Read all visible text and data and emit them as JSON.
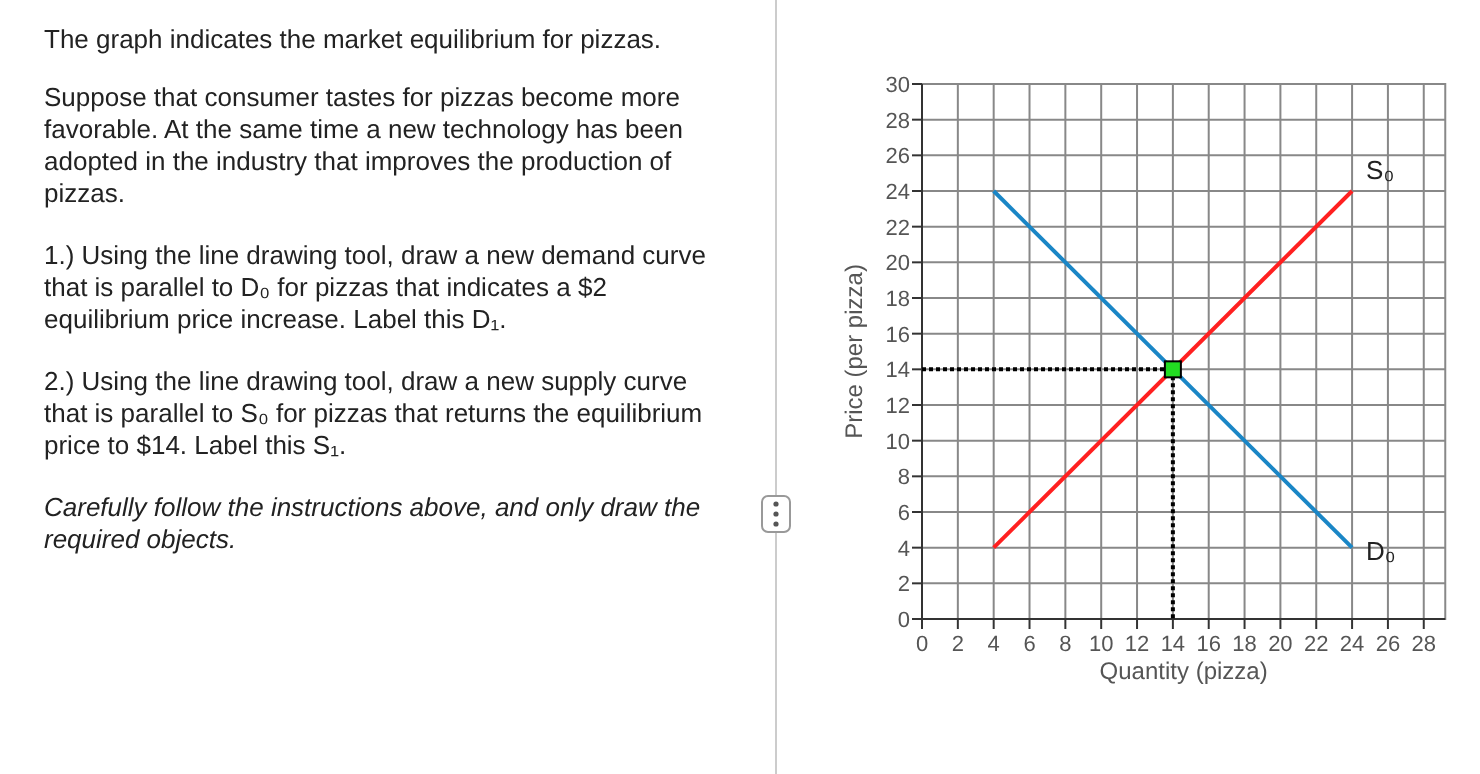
{
  "chart_data": {
    "type": "line",
    "title": "The graph indicates the market equilibrium for pizzas.",
    "annotations": [
      "Suppose that consumer tastes for pizzas become more favorable. At the same time a new technology has been adopted in the industry that improves the production of pizzas.",
      "1.) Using the line drawing tool, draw a new demand curve that is parallel to D₀ for pizzas that indicates a $2 equilibrium price increase. Label this D₁.",
      "2.) Using the line drawing tool, draw a new supply curve that is parallel to S₀ for pizzas that returns the equilibrium price to $14. Label this S₁.",
      "Carefully follow the instructions above, and only draw the required objects."
    ],
    "xlabel": "Quantity  (pizza)",
    "ylabel": "Price (per pizza)",
    "xlim": [
      0,
      29.2
    ],
    "ylim": [
      0,
      30
    ],
    "xticks": [
      0,
      2,
      4,
      6,
      8,
      10,
      12,
      14,
      16,
      18,
      20,
      22,
      24,
      26,
      28
    ],
    "yticks": [
      0,
      2,
      4,
      6,
      8,
      10,
      12,
      14,
      16,
      18,
      20,
      22,
      24,
      26,
      28,
      30
    ],
    "grid": true,
    "series": [
      {
        "name": "S₀",
        "color": "#ff2020",
        "x": [
          4,
          24
        ],
        "values": [
          4,
          24
        ]
      },
      {
        "name": "D₀",
        "color": "#1a86c6",
        "x": [
          4,
          24
        ],
        "values": [
          24,
          4
        ]
      },
      {
        "color": "#000000",
        "x": [
          0,
          14
        ],
        "values": [
          14,
          14
        ],
        "line_style": "dotted"
      },
      {
        "color": "#000000",
        "x": [
          14,
          14
        ],
        "values": [
          14,
          0
        ],
        "line_style": "dotted"
      },
      {
        "type": "scatter",
        "color": "#22dd22",
        "x": [
          14
        ],
        "values": [
          14
        ],
        "marker": "square"
      }
    ]
  }
}
